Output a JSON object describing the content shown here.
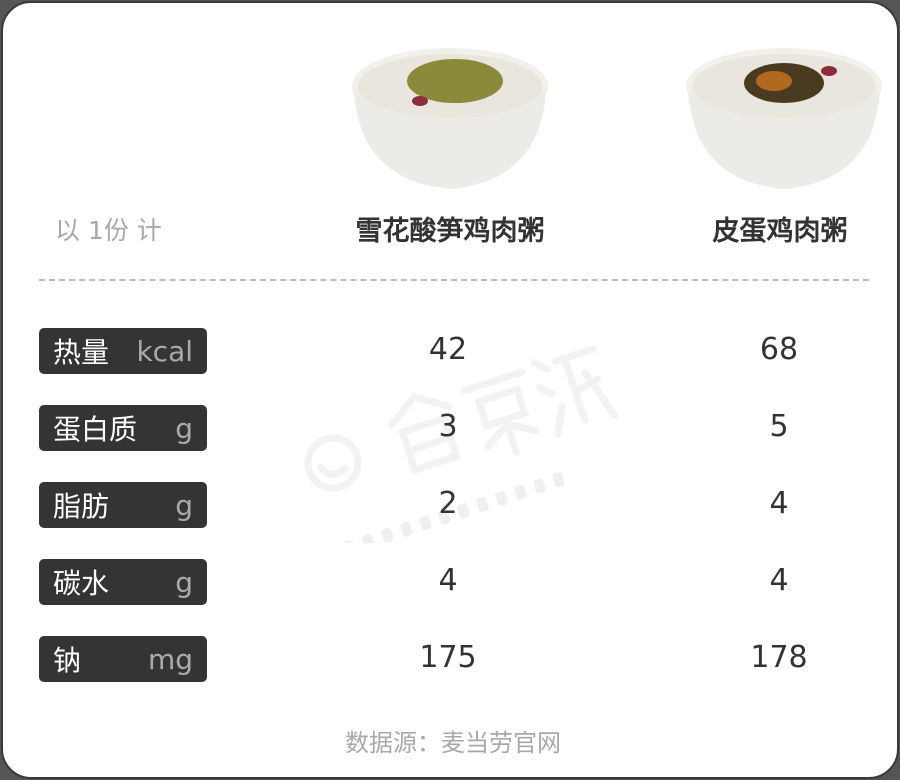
{
  "header": {
    "basis": "以 1份 计",
    "products": [
      "雪花酸笋鸡肉粥",
      "皮蛋鸡肉粥"
    ]
  },
  "rows": [
    {
      "name": "热量",
      "unit": "kcal",
      "values": [
        "42",
        "68"
      ]
    },
    {
      "name": "蛋白质",
      "unit": "g",
      "values": [
        "3",
        "5"
      ]
    },
    {
      "name": "脂肪",
      "unit": "g",
      "values": [
        "2",
        "4"
      ]
    },
    {
      "name": "碳水",
      "unit": "g",
      "values": [
        "4",
        "4"
      ]
    },
    {
      "name": "钠",
      "unit": "mg",
      "values": [
        "175",
        "178"
      ]
    }
  ],
  "source": "数据源：麦当劳官网",
  "watermark": {
    "cn": "食栗派",
    "en": "CHESTNUTMATES"
  }
}
